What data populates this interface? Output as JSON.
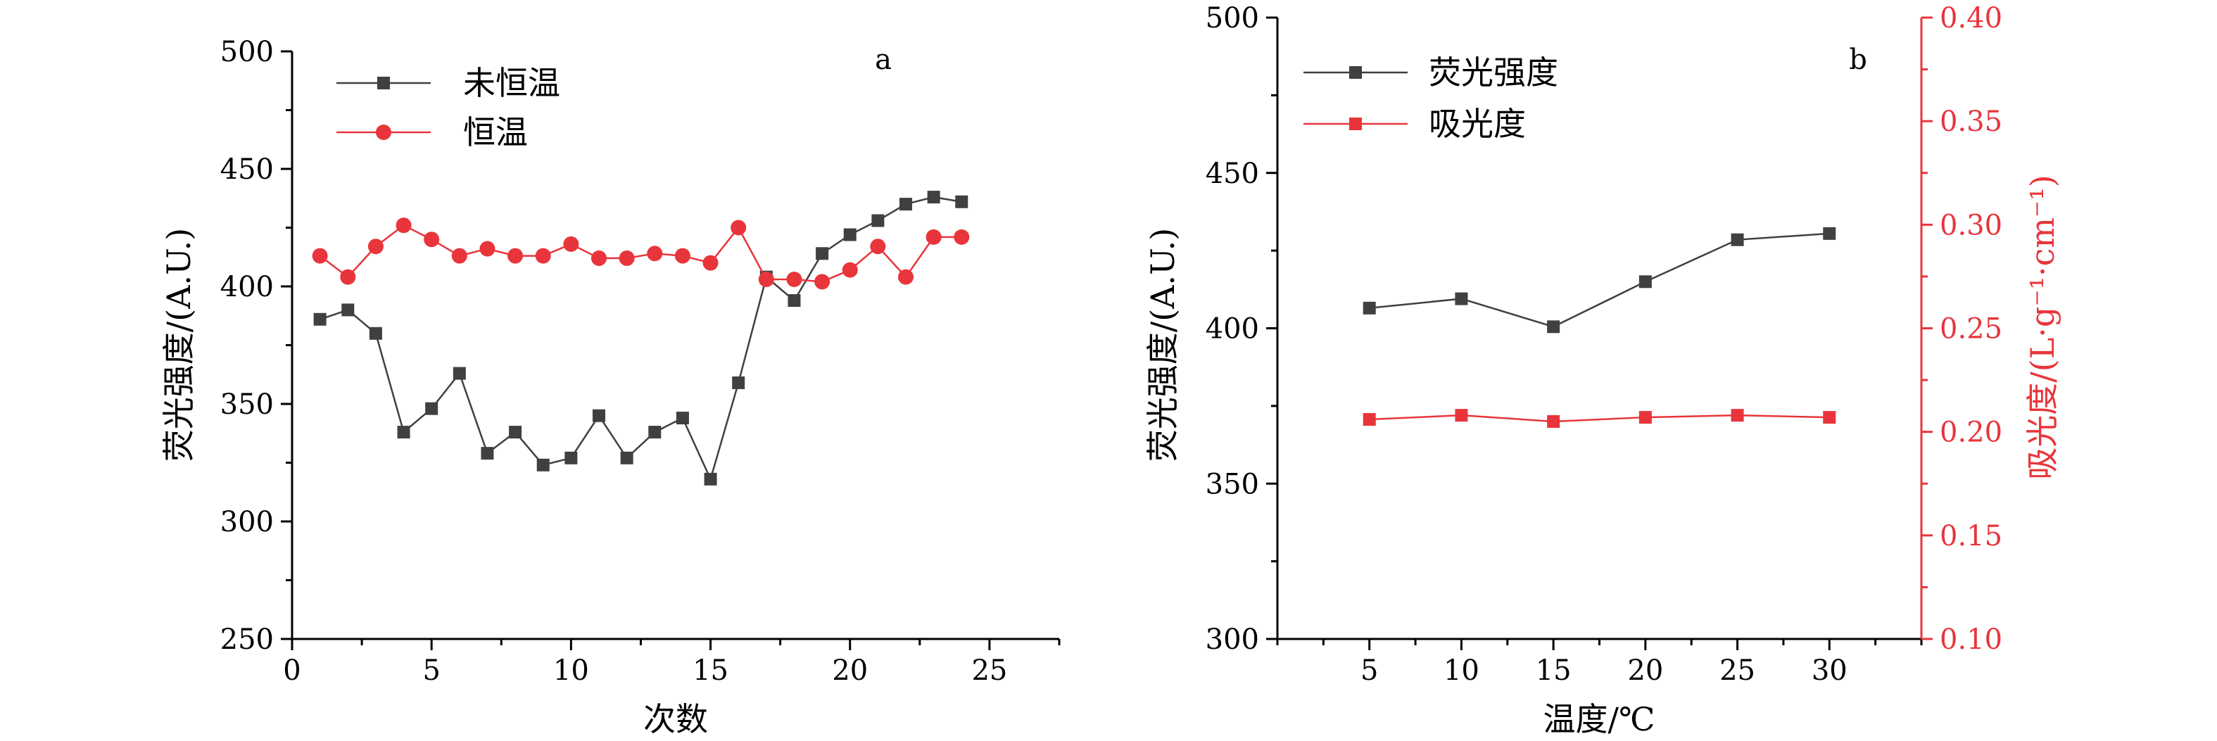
{
  "colors": {
    "black_series": "#404040",
    "red_series": "#e8353b",
    "axis": "#000000",
    "red_axis": "#e8353b"
  },
  "chart_data": [
    {
      "panel": "a",
      "type": "line",
      "xlabel": "次数",
      "ylabel": "荧光强度/(A.U.)",
      "xlim": [
        0,
        27.5
      ],
      "ylim": [
        250,
        500
      ],
      "xticks": [
        0,
        5,
        10,
        15,
        20,
        25
      ],
      "yticks": [
        250,
        300,
        350,
        400,
        450,
        500
      ],
      "grid": false,
      "legend_position": "top-left",
      "series": [
        {
          "name": "未恒温",
          "marker": "square",
          "color": "#404040",
          "x": [
            1,
            2,
            3,
            4,
            5,
            6,
            7,
            8,
            9,
            10,
            11,
            12,
            13,
            14,
            15,
            16,
            17,
            18,
            19,
            20,
            21,
            22,
            23,
            24
          ],
          "y": [
            386,
            390,
            380,
            338,
            348,
            363,
            329,
            338,
            324,
            327,
            345,
            327,
            338,
            344,
            318,
            359,
            404,
            394,
            414,
            422,
            428,
            435,
            438,
            436
          ]
        },
        {
          "name": "恒温",
          "marker": "circle",
          "color": "#e8353b",
          "x": [
            1,
            2,
            3,
            4,
            5,
            6,
            7,
            8,
            9,
            10,
            11,
            12,
            13,
            14,
            15,
            16,
            17,
            18,
            19,
            20,
            21,
            22,
            23,
            24
          ],
          "y": [
            413,
            404,
            417,
            426,
            420,
            413,
            416,
            413,
            413,
            418,
            412,
            412,
            414,
            413,
            410,
            425,
            403,
            403,
            402,
            407,
            417,
            404,
            421,
            421
          ]
        }
      ]
    },
    {
      "panel": "b",
      "type": "line",
      "xlabel": "温度/℃",
      "ylabel": "荧光强度/(A.U.)",
      "y2label": "吸光度/(L·g⁻¹·cm⁻¹)",
      "xlim": [
        0,
        35
      ],
      "ylim": [
        300,
        500
      ],
      "y2lim": [
        0.1,
        0.4
      ],
      "xticks": [
        5,
        10,
        15,
        20,
        25,
        30
      ],
      "yticks": [
        300,
        350,
        400,
        450,
        500
      ],
      "y2ticks": [
        "0.10",
        "0.15",
        "0.20",
        "0.25",
        "0.30",
        "0.35",
        "0.40"
      ],
      "grid": false,
      "legend_position": "top-left",
      "series": [
        {
          "name": "荧光强度",
          "axis": "left",
          "marker": "square",
          "color": "#404040",
          "x": [
            5,
            10,
            15,
            20,
            25,
            30
          ],
          "y": [
            406.5,
            409.5,
            400.5,
            415,
            428.5,
            430.5
          ]
        },
        {
          "name": "吸光度",
          "axis": "right",
          "marker": "square",
          "color": "#e8353b",
          "x": [
            5,
            10,
            15,
            20,
            25,
            30
          ],
          "y": [
            0.206,
            0.208,
            0.205,
            0.207,
            0.208,
            0.207
          ]
        }
      ]
    }
  ]
}
